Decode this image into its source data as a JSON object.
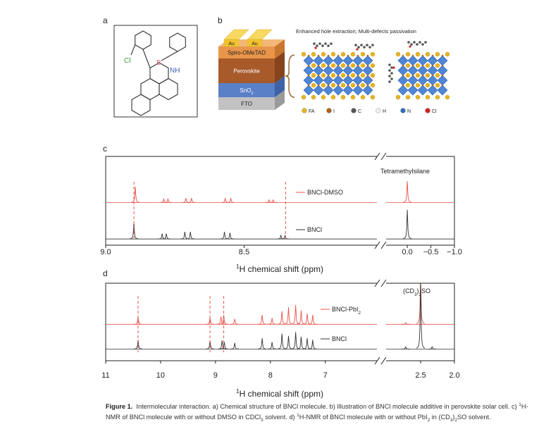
{
  "panels": {
    "a": "a",
    "b": "b",
    "c": "c",
    "d": "d"
  },
  "structure": {
    "cl": "Cl",
    "b": "B",
    "nh": "NH"
  },
  "device": {
    "au": [
      "Au",
      "Au"
    ],
    "layers": [
      "Spiro-OMeTAD",
      "Perovskite",
      [
        "SnO",
        {
          "sub": "2"
        }
      ],
      "FTO"
    ],
    "title": "Enhanced hole extraction; Multi-defects passivation",
    "legend": [
      {
        "label": "FA",
        "color": "#e6b422"
      },
      {
        "label": "I",
        "color": "#b0601a"
      },
      {
        "label": "C",
        "color": "#555555"
      },
      {
        "label": "H",
        "color": "#eeeeee"
      },
      {
        "label": "N",
        "color": "#2c6fc0"
      },
      {
        "label": "Cl",
        "color": "#d62020"
      }
    ]
  },
  "plots": [
    {
      "xlim": [
        9.0,
        8.02
      ],
      "xlim2": [
        0.45,
        -1.0
      ],
      "ylim": [
        0,
        100
      ],
      "xticks": [
        {
          "value": 9.0,
          "label": "9.0"
        },
        8.5
      ],
      "xticks2": [
        {
          "value": 0.0,
          "label": "0.0"
        },
        {
          "value": -0.5,
          "label": "−0.5"
        },
        {
          "value": -1.0,
          "label": "−1.0"
        }
      ],
      "xlabel": [
        {
          "sup": "1"
        },
        "H chemical shift (ppm)"
      ],
      "annotation": "Tetramethylsilane",
      "dashes": [
        8.898,
        8.35
      ],
      "dash_color": "#e8544a",
      "spectra": [
        {
          "name": [
            "BNCl-DMSO"
          ],
          "color": "#e8544a",
          "offset": 48,
          "peaks": [
            {
              "x": 8.893,
              "h": 18
            },
            {
              "x": 8.79,
              "h": 4
            },
            {
              "x": 8.775,
              "h": 4
            },
            {
              "x": 8.71,
              "h": 5
            },
            {
              "x": 8.69,
              "h": 5
            },
            {
              "x": 8.568,
              "h": 5
            },
            {
              "x": 8.548,
              "h": 5
            },
            {
              "x": 8.41,
              "h": 3
            },
            {
              "x": 8.395,
              "h": 3
            },
            {
              "x": 0.0,
              "h": 24
            }
          ]
        },
        {
          "name": [
            "BNCl"
          ],
          "color": "#333333",
          "offset": 7,
          "peaks": [
            {
              "x": 8.898,
              "h": 18
            },
            {
              "x": 8.796,
              "h": 6
            },
            {
              "x": 8.781,
              "h": 6
            },
            {
              "x": 8.714,
              "h": 8
            },
            {
              "x": 8.694,
              "h": 8
            },
            {
              "x": 8.571,
              "h": 8
            },
            {
              "x": 8.551,
              "h": 7
            },
            {
              "x": 8.367,
              "h": 4
            },
            {
              "x": 8.352,
              "h": 4
            },
            {
              "x": 0.0,
              "h": 33
            }
          ]
        }
      ]
    },
    {
      "xlim": [
        11.0,
        6.06
      ],
      "xlim2": [
        3.01,
        2.0
      ],
      "ylim": [
        0,
        100
      ],
      "xticks": [
        11,
        10,
        9,
        8,
        7
      ],
      "xticks2": [
        2.5,
        {
          "value": 2.0,
          "label": "2.0"
        }
      ],
      "xlabel": [
        {
          "sup": "1"
        },
        "H chemical shift (ppm)"
      ],
      "annotation": [
        "(CD",
        {
          "sub": "3"
        },
        ")",
        {
          "sub": "2"
        },
        "SO"
      ],
      "dashes": [
        10.41,
        9.1,
        8.85
      ],
      "dash_color": "#e8544a",
      "spectra": [
        {
          "name": [
            "BNCl-PbI",
            {
              "sub": "2"
            }
          ],
          "color": "#e8544a",
          "offset": 47,
          "peaks": [
            {
              "x": 10.41,
              "h": 9
            },
            {
              "x": 9.1,
              "h": 8
            },
            {
              "x": 8.9,
              "h": 10
            },
            {
              "x": 8.85,
              "h": 12
            },
            {
              "x": 8.65,
              "h": 7
            },
            {
              "x": 8.15,
              "h": 12
            },
            {
              "x": 7.97,
              "h": 8
            },
            {
              "x": 7.79,
              "h": 17
            },
            {
              "x": 7.67,
              "h": 22
            },
            {
              "x": 7.54,
              "h": 25
            },
            {
              "x": 7.44,
              "h": 18
            },
            {
              "x": 7.33,
              "h": 14
            },
            {
              "x": 7.23,
              "h": 12
            },
            {
              "x": 2.72,
              "h": 2
            },
            {
              "x": 2.5,
              "h": 60
            }
          ]
        },
        {
          "name": [
            "BNCl"
          ],
          "color": "#333333",
          "offset": 15,
          "peaks": [
            {
              "x": 10.41,
              "h": 12
            },
            {
              "x": 9.1,
              "h": 11
            },
            {
              "x": 8.88,
              "h": 11
            },
            {
              "x": 8.84,
              "h": 9
            },
            {
              "x": 8.65,
              "h": 8
            },
            {
              "x": 8.15,
              "h": 14
            },
            {
              "x": 7.97,
              "h": 9
            },
            {
              "x": 7.79,
              "h": 20
            },
            {
              "x": 7.67,
              "h": 17
            },
            {
              "x": 7.54,
              "h": 22
            },
            {
              "x": 7.44,
              "h": 16
            },
            {
              "x": 7.33,
              "h": 14
            },
            {
              "x": 7.23,
              "h": 12
            },
            {
              "x": 2.72,
              "h": 3
            },
            {
              "x": 2.5,
              "h": 85
            },
            {
              "x": 2.33,
              "h": 3
            }
          ]
        }
      ]
    }
  ],
  "caption": [
    [
      {
        "bold": "Figure 1."
      },
      "  Intermolecular interaction. a) Chemical structure of BNCl molecule. b) Illustration of BNCl molecule additive in perovskite solar cell. c) ",
      {
        "sup": "1"
      },
      "H-"
    ],
    [
      "NMR of BNCl molecule with or without DMSO in CDCl",
      {
        "sub": "3"
      },
      " solvent. d) ",
      {
        "sup": "1"
      },
      "H-NMR of BNCl molecule with or without PbI",
      {
        "sub": "2"
      },
      " in (CD",
      {
        "sub": "3"
      },
      ")",
      {
        "sub": "2"
      },
      "SO solvent."
    ]
  ]
}
